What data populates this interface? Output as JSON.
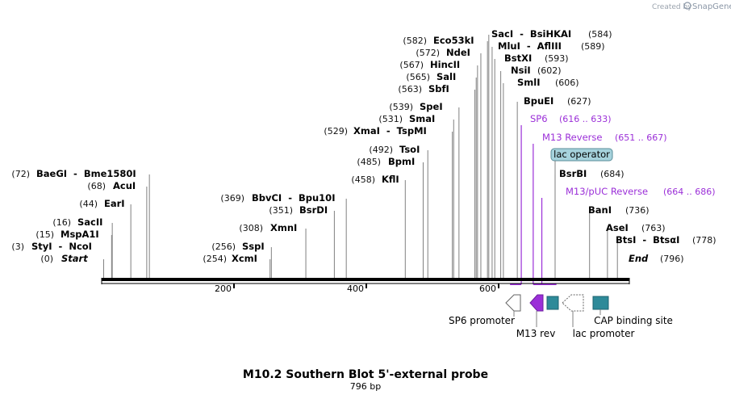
{
  "credit": {
    "prefix": "Created by",
    "brand": "SnapGene"
  },
  "map": {
    "title": "M10.2 Southern Blot 5'-external probe",
    "length_label": "796 bp",
    "length": 796,
    "ticks": [
      "200",
      "400",
      "600"
    ],
    "tick_values": [
      200,
      400,
      600
    ]
  },
  "sites": [
    {
      "name": "StyI  -  NcoI",
      "pos_label": "(3)",
      "pos": 3
    },
    {
      "name": "Start",
      "pos_label": "(0)",
      "pos": 0,
      "italic": true
    },
    {
      "name": "MspA1I",
      "pos_label": "(15)",
      "pos": 15
    },
    {
      "name": "SacII",
      "pos_label": "(16)",
      "pos": 16
    },
    {
      "name": "EarI",
      "pos_label": "(44)",
      "pos": 44
    },
    {
      "name": "AcuI",
      "pos_label": "(68)",
      "pos": 68
    },
    {
      "name": "BaeGI  -  Bme1580I",
      "pos_label": "(72)",
      "pos": 72
    },
    {
      "name": "XcmI",
      "pos_label": "(254)",
      "pos": 254
    },
    {
      "name": "SspI",
      "pos_label": "(256)",
      "pos": 256
    },
    {
      "name": "XmnI",
      "pos_label": "(308)",
      "pos": 308
    },
    {
      "name": "BsrDI",
      "pos_label": "(351)",
      "pos": 351
    },
    {
      "name": "BbvCI  -  Bpu10I",
      "pos_label": "(369)",
      "pos": 369
    },
    {
      "name": "KflI",
      "pos_label": "(458)",
      "pos": 458
    },
    {
      "name": "BpmI",
      "pos_label": "(485)",
      "pos": 485
    },
    {
      "name": "TsoI",
      "pos_label": "(492)",
      "pos": 492
    },
    {
      "name": "XmaI  -  TspMI",
      "pos_label": "(529)",
      "pos": 529
    },
    {
      "name": "SmaI",
      "pos_label": "(531)",
      "pos": 531
    },
    {
      "name": "SpeI",
      "pos_label": "(539)",
      "pos": 539
    },
    {
      "name": "SbfI",
      "pos_label": "(563)",
      "pos": 563
    },
    {
      "name": "SalI",
      "pos_label": "(565)",
      "pos": 565
    },
    {
      "name": "HincII",
      "pos_label": "(567)",
      "pos": 567
    },
    {
      "name": "NdeI",
      "pos_label": "(572)",
      "pos": 572
    },
    {
      "name": "Eco53kI",
      "pos_label": "(582)",
      "pos": 582
    },
    {
      "name": "SacI  -  BsiHKAI",
      "pos_label": "(584)",
      "pos": 584
    },
    {
      "name": "MluI  -  AflIII",
      "pos_label": "(589)",
      "pos": 589
    },
    {
      "name": "BstXI",
      "pos_label": "(593)",
      "pos": 593
    },
    {
      "name": "NsiI",
      "pos_label": "(602)",
      "pos": 602
    },
    {
      "name": "SmlI",
      "pos_label": "(606)",
      "pos": 606
    },
    {
      "name": "BpuEI",
      "pos_label": "(627)",
      "pos": 627
    },
    {
      "name": "BsrBI",
      "pos_label": "(684)",
      "pos": 684
    },
    {
      "name": "BanI",
      "pos_label": "(736)",
      "pos": 736
    },
    {
      "name": "AseI",
      "pos_label": "(763)",
      "pos": 763
    },
    {
      "name": "BtsI  -  BtsαI",
      "pos_label": "(778)",
      "pos": 778
    },
    {
      "name": "End",
      "pos_label": "(796)",
      "pos": 796,
      "italic": true
    }
  ],
  "primers": [
    {
      "name": "SP6",
      "range": "(616 .. 633)",
      "start": 616,
      "end": 633
    },
    {
      "name": "M13 Reverse",
      "range": "(651 .. 667)",
      "start": 651,
      "end": 667
    },
    {
      "name": "M13/pUC Reverse",
      "range": "(664 .. 686)",
      "start": 664,
      "end": 686
    }
  ],
  "lac_operator": {
    "label": "lac operator"
  },
  "features": [
    {
      "name": "SP6 promoter"
    },
    {
      "name": "M13 rev"
    },
    {
      "name": "lac promoter"
    },
    {
      "name": "CAP binding site"
    }
  ],
  "colors": {
    "primer": "#9B2FD8",
    "operator_fill": "#A6D2DC",
    "feature_teal": "#2E8A99",
    "m13rev": "#9B2FD8",
    "backbone": "#000000",
    "cut_line": "#808080"
  }
}
